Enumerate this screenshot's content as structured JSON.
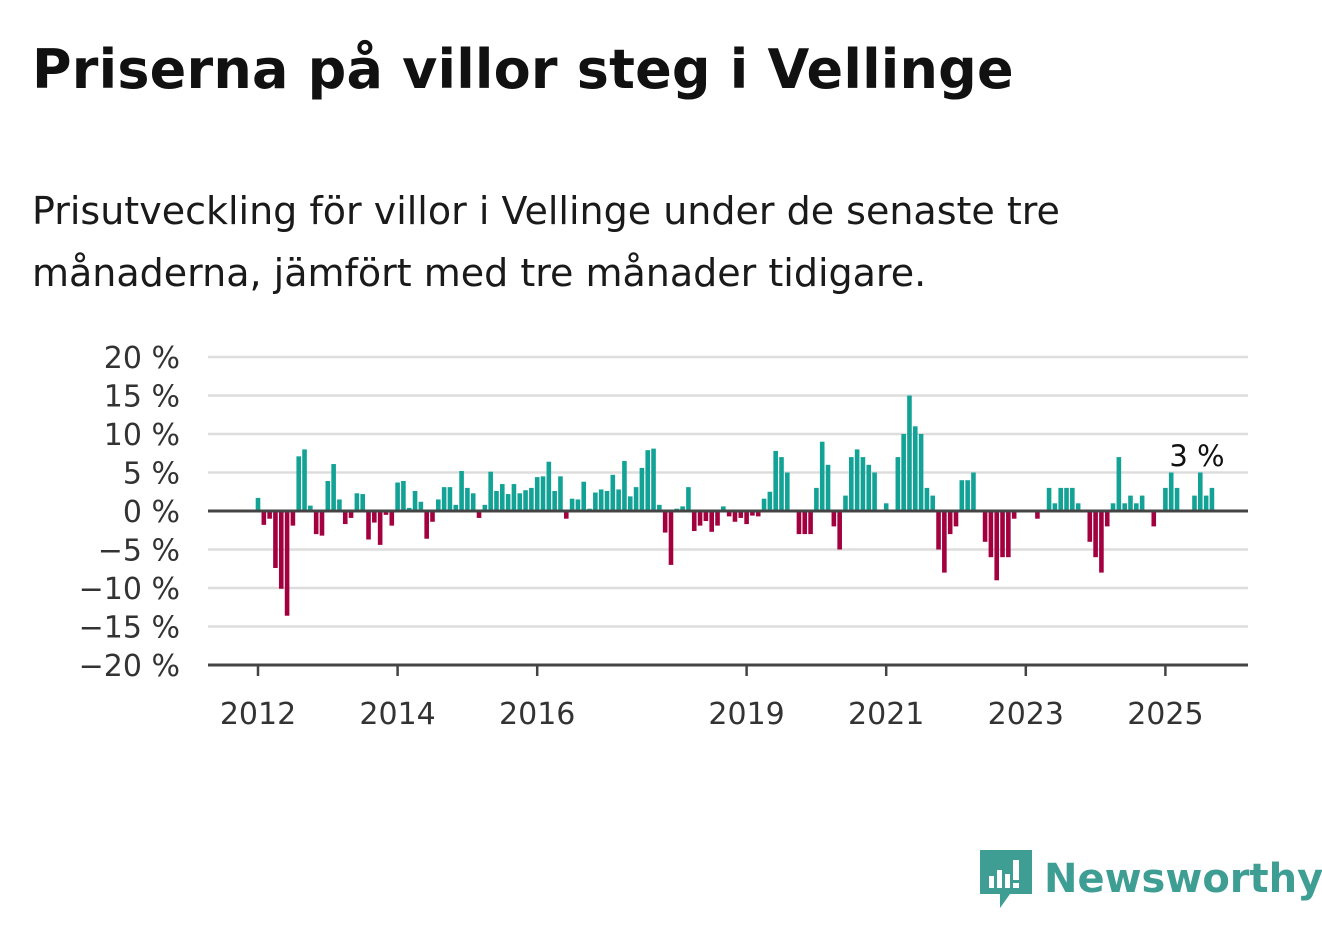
{
  "title": "Priserna på villor steg i Vellinge",
  "subtitle": "Prisutveckling för villor i Vellinge under de senaste tre månaderna, jämfört med tre månader tidigare.",
  "brand": {
    "name": "Newsworthy",
    "color": "#3e9e94",
    "icon": "newsworthy-logo-icon"
  },
  "colors": {
    "positive": "#13a396",
    "negative": "#a3003f",
    "grid": "#dddddd",
    "axis": "#444444"
  },
  "chart_data": {
    "type": "bar",
    "ylim": [
      -20,
      20
    ],
    "y_ticks": [
      "20 %",
      "15 %",
      "10 %",
      "5 %",
      "0 %",
      "−5 %",
      "−10 %",
      "−15 %",
      "−20 %"
    ],
    "y_tick_values": [
      20,
      15,
      10,
      5,
      0,
      -5,
      -10,
      -15,
      -20
    ],
    "x_ticks": [
      {
        "label": "2012",
        "year": 2012
      },
      {
        "label": "2014",
        "year": 2014
      },
      {
        "label": "2016",
        "year": 2016
      },
      {
        "label": "2019",
        "year": 2019
      },
      {
        "label": "2021",
        "year": 2021
      },
      {
        "label": "2023",
        "year": 2023
      },
      {
        "label": "2025",
        "year": 2025
      }
    ],
    "start": "2012-01",
    "end_label": "3 %",
    "grid": true,
    "values": [
      1.7,
      -1.8,
      -1,
      -7.4,
      -10.1,
      -13.6,
      -1.9,
      7.1,
      8,
      0.7,
      -3,
      -3.2,
      3.9,
      6.1,
      1.5,
      -1.7,
      -0.9,
      2.3,
      2.2,
      -3.7,
      -1.5,
      -4.4,
      -0.5,
      -1.9,
      3.7,
      3.9,
      0.4,
      2.6,
      1.2,
      -3.6,
      -1.4,
      1.5,
      3.1,
      3.1,
      0.8,
      5.2,
      3,
      2.3,
      -0.9,
      0.8,
      5.1,
      2.6,
      3.5,
      2.2,
      3.5,
      2.3,
      2.7,
      3,
      4.4,
      4.5,
      6.4,
      2.6,
      4.5,
      -1,
      1.6,
      1.5,
      3.8,
      0.3,
      2.4,
      2.8,
      2.6,
      4.7,
      2.8,
      6.5,
      1.9,
      3.1,
      5.6,
      7.9,
      8.1,
      0.8,
      -2.8,
      -7,
      0.3,
      0.6,
      3.1,
      -2.6,
      -1.9,
      -1.3,
      -2.7,
      -1.9,
      0.6,
      -0.7,
      -1.4,
      -0.9,
      -1.7,
      -0.6,
      -0.7,
      1.6,
      2.5,
      7.8,
      7,
      5,
      0,
      -3,
      -3,
      -3,
      3,
      9,
      6,
      -2,
      -5,
      2,
      7,
      8,
      7,
      6,
      5,
      0,
      1,
      0,
      7,
      10,
      15,
      11,
      10,
      3,
      2,
      -5,
      -8,
      -3,
      -2,
      4,
      4,
      5,
      0,
      -4,
      -6,
      -9,
      -6,
      -6,
      -1,
      0,
      0,
      0,
      -1,
      0,
      3,
      1,
      3,
      3,
      3,
      1,
      0,
      -4,
      -6,
      -8,
      -2,
      1,
      7,
      1,
      2,
      1,
      2,
      0,
      -2,
      0,
      3,
      5,
      3,
      0,
      0,
      2,
      5,
      2,
      3
    ]
  }
}
